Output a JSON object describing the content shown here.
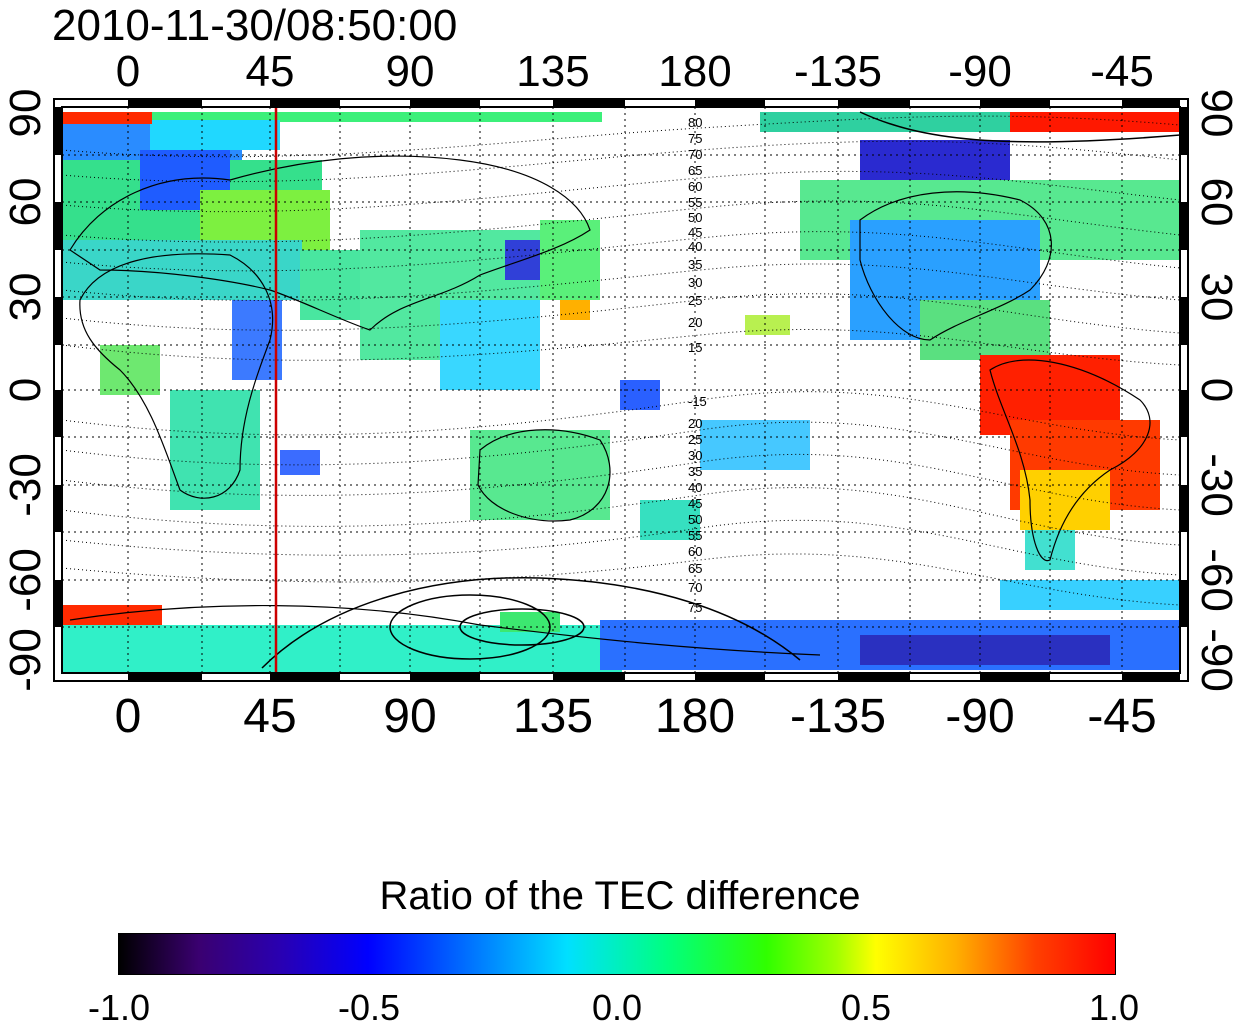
{
  "timestamp": "2010-11-30/08:50:00",
  "map": {
    "lon_ticks_labels": [
      "0",
      "45",
      "90",
      "135",
      "180",
      "-135",
      "-90",
      "-45"
    ],
    "lat_ticks_labels": [
      "90",
      "60",
      "30",
      "0",
      "-30",
      "-60",
      "-90"
    ],
    "contour_labels_north": [
      "80",
      "75",
      "70",
      "65",
      "60",
      "55",
      "50",
      "45",
      "40",
      "35",
      "30",
      "25",
      "20",
      "15"
    ],
    "contour_labels_south": [
      "-15",
      "20",
      "25",
      "30",
      "35",
      "40",
      "45",
      "50",
      "55",
      "60",
      "65",
      "70",
      "75"
    ],
    "reference_longitude": 48,
    "colors": {
      "reference_line": "#cc0000",
      "frame": "#000000"
    }
  },
  "colorbar": {
    "title": "Ratio of the TEC difference",
    "labels": [
      "-1.0",
      "-0.5",
      "0.0",
      "0.5",
      "1.0"
    ],
    "range": [
      -1.0,
      1.0
    ]
  }
}
